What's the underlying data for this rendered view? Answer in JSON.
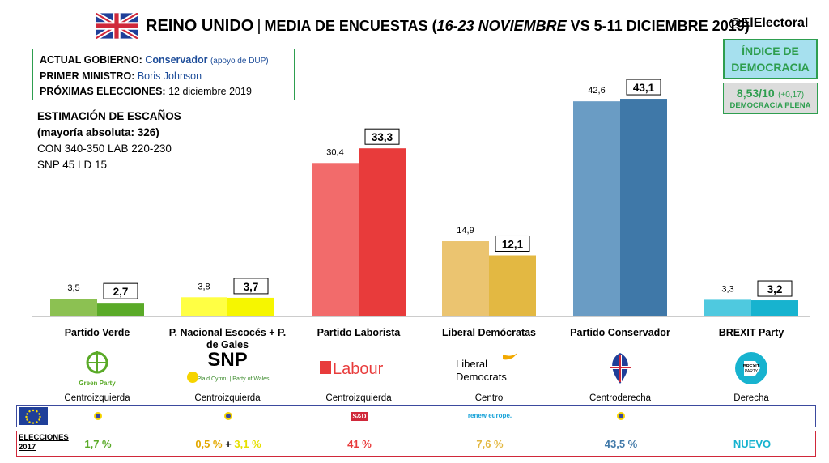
{
  "header": {
    "country": "REINO UNIDO",
    "separator": "|",
    "subtitle_prefix": "MEDIA DE ENCUESTAS (",
    "period_1": "16-23 NOVIEMBRE",
    "vs": " VS ",
    "period_2": "5-11 DICIEMBRE 2019",
    "close": ")",
    "handle": "@ElElectoral"
  },
  "info": {
    "gov_label": "ACTUAL GOBIERNO:",
    "gov_value": "Conservador",
    "gov_note": "(apoyo de DUP)",
    "pm_label": "PRIMER MINISTRO:",
    "pm_value": "Boris Johnson",
    "next_label": "PRÓXIMAS ELECCIONES:",
    "next_value": "12 diciembre 2019"
  },
  "seats": {
    "line1": "ESTIMACIÓN DE ESCAÑOS",
    "line2": "(mayoría absoluta: 326)",
    "line3": "CON 340-350 LAB 220-230",
    "line4": "SNP 45 LD 15"
  },
  "democracy": {
    "title": "ÍNDICE DE DEMOCRACIA",
    "score": "8,53/10",
    "change": "(+0,17)",
    "category": "DEMOCRACIA PLENA"
  },
  "chart_data": {
    "type": "bar",
    "categories": [
      "Partido Verde",
      "P. Nacional Escocés + P. de Gales",
      "Partido Laborista",
      "Liberal Demócratas",
      "Partido Conservador",
      "BREXIT Party"
    ],
    "series": [
      {
        "values": [
          3.5,
          3.8,
          30.4,
          14.9,
          42.6,
          3.3
        ]
      },
      {
        "values": [
          2.7,
          3.7,
          33.3,
          12.1,
          43.1,
          3.2
        ]
      }
    ],
    "value_labels_prev": [
      "3,5",
      "3,8",
      "30,4",
      "14,9",
      "42,6",
      "3,3"
    ],
    "value_labels_curr": [
      "2,7",
      "3,7",
      "33,3",
      "12,1",
      "43,1",
      "3,2"
    ],
    "colors_prev": [
      "#8cc152",
      "#ffff44",
      "#f26b6b",
      "#ebc470",
      "#6a9cc4",
      "#4fc9df"
    ],
    "colors_curr": [
      "#5aaa28",
      "#f6f600",
      "#e83b3b",
      "#e3b842",
      "#3f78a8",
      "#17b3cf"
    ],
    "ylim": [
      0,
      45
    ],
    "grid": false,
    "legend": "none"
  },
  "parties": [
    {
      "name": "Partido Verde",
      "ideology": "Centroizquierda",
      "logo_text": "Green Party",
      "eu_group": "Greens/EFA",
      "e2017": "1,7 %",
      "color": "#5aaa28"
    },
    {
      "name": "P. Nacional Escocés + P. de Gales",
      "ideology": "Centroizquierda",
      "logo_text": "SNP",
      "logo_sub": "Plaid Cymru | Party of Wales",
      "eu_group": "Greens/EFA",
      "e2017_a": "0,5 %",
      "e2017_plus": " + ",
      "e2017_b": "3,1 %",
      "color": "#e3b800"
    },
    {
      "name": "Partido Laborista",
      "ideology": "Centroizquierda",
      "logo_text": "Labour",
      "eu_group": "S&D",
      "e2017": "41 %",
      "color": "#e83b3b"
    },
    {
      "name": "Liberal Demócratas",
      "ideology": "Centro",
      "logo_text": "Liberal Democrats",
      "eu_group": "renew europe.",
      "e2017": "7,6 %",
      "color": "#e3b842"
    },
    {
      "name": "Partido Conservador",
      "ideology": "Centroderecha",
      "logo_text": "",
      "eu_group": "ECR",
      "e2017": "43,5 %",
      "color": "#3f78a8"
    },
    {
      "name": "BREXIT Party",
      "ideology": "Derecha",
      "logo_text": "BREXIT PARTY",
      "eu_group": "",
      "e2017": "NUEVO",
      "color": "#17b3cf"
    }
  ],
  "elections_label": {
    "line1": "ELECCIONES",
    "line2": "2017"
  }
}
